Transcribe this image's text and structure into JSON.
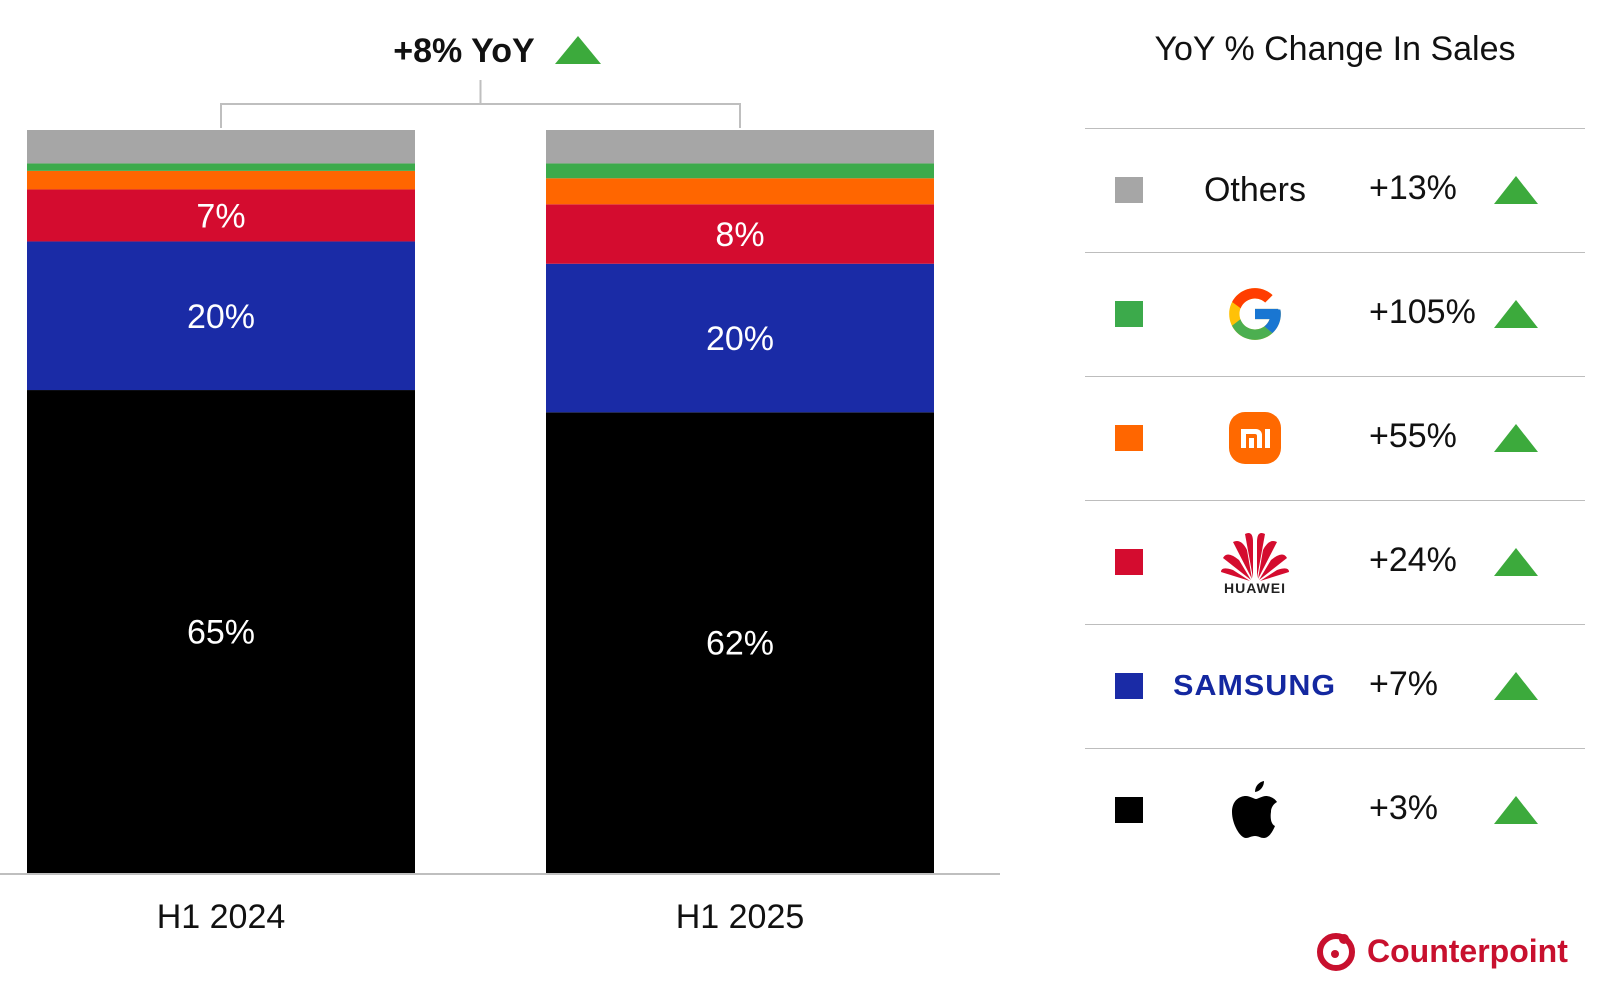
{
  "chart_data": {
    "type": "bar",
    "stacked": true,
    "categories": [
      "H1 2024",
      "H1 2025"
    ],
    "series": [
      {
        "name": "Apple",
        "color": "#000000",
        "values": [
          65,
          62
        ],
        "labels": [
          "65%",
          "62%"
        ]
      },
      {
        "name": "Samsung",
        "color": "#1a2ba6",
        "values": [
          20,
          20
        ],
        "labels": [
          "20%",
          "20%"
        ]
      },
      {
        "name": "Huawei",
        "color": "#d40c2f",
        "values": [
          7,
          8
        ],
        "labels": [
          "7%",
          "8%"
        ]
      },
      {
        "name": "Xiaomi",
        "color": "#ff6600",
        "values": [
          2.5,
          3.5
        ],
        "labels": [
          "",
          ""
        ]
      },
      {
        "name": "Google",
        "color": "#3caa4b",
        "values": [
          1,
          2
        ],
        "labels": [
          "",
          ""
        ]
      },
      {
        "name": "Others",
        "color": "#a6a6a6",
        "values": [
          4.5,
          4.5
        ],
        "labels": [
          "",
          ""
        ]
      }
    ],
    "ylim": [
      0,
      100
    ],
    "grid": false,
    "annotation": "+8% YoY",
    "annotation_icon": "up-triangle-icon"
  },
  "panel": {
    "title": "YoY % Change In Sales",
    "rows": [
      {
        "brand": "Others",
        "logo": null,
        "swatch": "#a6a6a6",
        "change": "+13%"
      },
      {
        "brand": "Google",
        "logo": "google-logo",
        "swatch": "#3caa4b",
        "change": "+105%"
      },
      {
        "brand": "Xiaomi",
        "logo": "xiaomi-logo",
        "swatch": "#ff6600",
        "change": "+55%"
      },
      {
        "brand": "Huawei",
        "logo": "huawei-logo",
        "swatch": "#d40c2f",
        "change": "+24%",
        "logo_text": "HUAWEI"
      },
      {
        "brand": "Samsung",
        "logo": "samsung-logo",
        "swatch": "#1a2ba6",
        "change": "+7%",
        "logo_text": "SAMSUNG"
      },
      {
        "brand": "Apple",
        "logo": "apple-logo",
        "swatch": "#000000",
        "change": "+3%"
      }
    ],
    "up_color": "#3caa3c"
  },
  "footer": {
    "logo_text": "Counterpoint",
    "logo_color": "#c8102e"
  }
}
